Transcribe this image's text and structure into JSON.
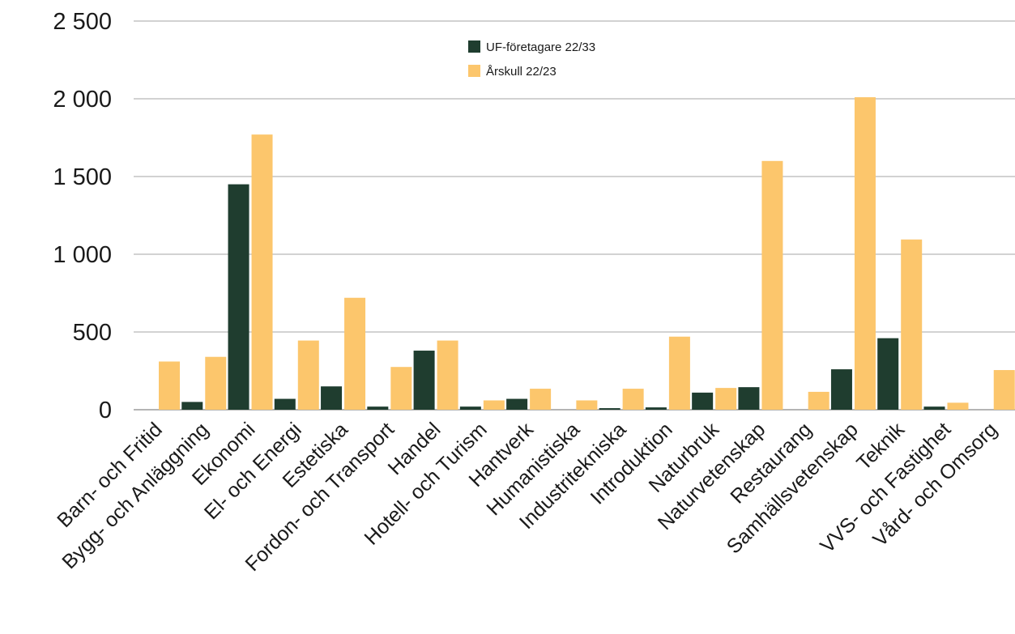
{
  "chart_data": {
    "type": "bar",
    "title": "",
    "xlabel": "",
    "ylabel": "",
    "ylim": [
      0,
      2500
    ],
    "yticks": [
      0,
      500,
      1000,
      1500,
      2000,
      2500
    ],
    "ytick_labels": [
      "0",
      "500",
      "1 000",
      "1 500",
      "2 000",
      "2 500"
    ],
    "grid": true,
    "legend_position": "top-center",
    "categories": [
      "Barn- och Fritid",
      "Bygg- och Anläggning",
      "Ekonomi",
      "El- och Energi",
      "Estetiska",
      "Fordon- och Transport",
      "Handel",
      "Hotell- och Turism",
      "Hantverk",
      "Humanistiska",
      "Industritekniska",
      "Introduktion",
      "Naturbruk",
      "Naturvetenskap",
      "Restaurang",
      "Samhällsvetenskap",
      "Teknik",
      "VVS- och Fastighet",
      "Vård- och Omsorg"
    ],
    "series": [
      {
        "name": "UF-företagare 22/33",
        "color": "#1f3d2f",
        "values": [
          0,
          50,
          1450,
          70,
          150,
          20,
          380,
          20,
          70,
          0,
          10,
          15,
          110,
          145,
          0,
          260,
          460,
          20,
          0
        ]
      },
      {
        "name": "Årskull 22/23",
        "color": "#fcc66c",
        "values": [
          310,
          340,
          1770,
          445,
          720,
          275,
          445,
          60,
          135,
          60,
          135,
          470,
          140,
          1600,
          115,
          2010,
          1095,
          45,
          255
        ]
      }
    ]
  }
}
